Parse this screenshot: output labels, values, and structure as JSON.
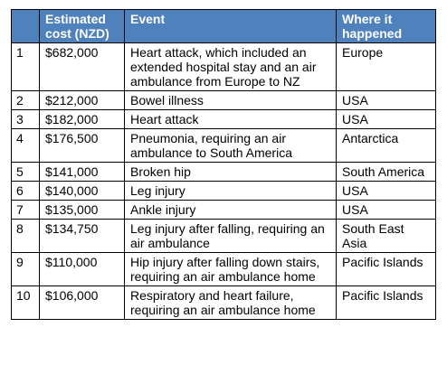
{
  "table": {
    "headers": [
      "",
      "Estimated\ncost (NZD)",
      "Event",
      "Where it\nhappened"
    ],
    "rows": [
      {
        "rank": "1",
        "cost": "$682,000",
        "event": "Heart attack, which included an\nextended hospital stay and an air\nambulance from Europe to NZ",
        "where": "Europe"
      },
      {
        "rank": "2",
        "cost": "$212,000",
        "event": "Bowel illness",
        "where": "USA"
      },
      {
        "rank": "3",
        "cost": "$182,000",
        "event": "Heart attack",
        "where": "USA"
      },
      {
        "rank": "4",
        "cost": "$176,500",
        "event": "Pneumonia, requiring an air\nambulance to South America",
        "where": "Antarctica"
      },
      {
        "rank": "5",
        "cost": "$141,000",
        "event": "Broken hip",
        "where": "South America"
      },
      {
        "rank": "6",
        "cost": "$140,000",
        "event": "Leg injury",
        "where": "USA"
      },
      {
        "rank": "7",
        "cost": "$135,000",
        "event": "Ankle injury",
        "where": "USA"
      },
      {
        "rank": "8",
        "cost": "$134,750",
        "event": "Leg injury after falling, requiring an\nair ambulance",
        "where": "South East\nAsia"
      },
      {
        "rank": "9",
        "cost": "$110,000",
        "event": "Hip injury after falling down stairs,\nrequiring an air ambulance home",
        "where": "Pacific Islands"
      },
      {
        "rank": "10",
        "cost": "$106,000",
        "event": "Respiratory and heart failure,\nrequiring an air ambulance home",
        "where": "Pacific Islands"
      }
    ]
  },
  "colors": {
    "header_bg": "#4f81bd",
    "header_text": "#ffffff",
    "border": "#000000"
  }
}
